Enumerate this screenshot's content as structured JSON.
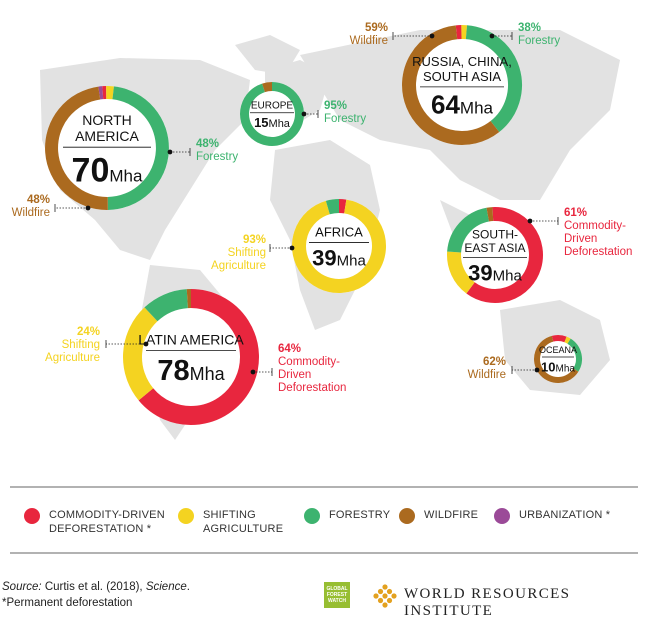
{
  "colors": {
    "commodity": "#e8263e",
    "shifting": "#f4d321",
    "forestry": "#3db36f",
    "wildfire": "#ab6a1f",
    "urbanization": "#9b4a98",
    "map": "#e2e2e2"
  },
  "chart_data": {
    "type": "donut",
    "categories": [
      "Commodity-driven deforestation",
      "Shifting agriculture",
      "Forestry",
      "Wildfire",
      "Urbanization"
    ],
    "regions": [
      {
        "id": "north-america",
        "name_lines": [
          "NORTH",
          "AMERICA"
        ],
        "total": "70",
        "unit": "Mha",
        "slices": [
          {
            "cat": "urbanization",
            "value": 1
          },
          {
            "cat": "commodity",
            "value": 1
          },
          {
            "cat": "shifting",
            "value": 2
          },
          {
            "cat": "forestry",
            "value": 48
          },
          {
            "cat": "wildfire",
            "value": 48
          }
        ],
        "callouts": [
          {
            "pct": "48%",
            "label_lines": [
              "Forestry"
            ],
            "cat": "forestry"
          },
          {
            "pct": "48%",
            "label_lines": [
              "Wildfire"
            ],
            "cat": "wildfire"
          }
        ]
      },
      {
        "id": "europe",
        "name_lines": [
          "EUROPE"
        ],
        "total": "15",
        "unit": "Mha",
        "slices": [
          {
            "cat": "forestry",
            "value": 95
          },
          {
            "cat": "wildfire",
            "value": 5
          }
        ],
        "callouts": [
          {
            "pct": "95%",
            "label_lines": [
              "Forestry"
            ],
            "cat": "forestry"
          }
        ]
      },
      {
        "id": "russia",
        "name_lines": [
          "RUSSIA, CHINA,",
          "SOUTH ASIA"
        ],
        "total": "64",
        "unit": "Mha",
        "slices": [
          {
            "cat": "commodity",
            "value": 1.5
          },
          {
            "cat": "shifting",
            "value": 1.5
          },
          {
            "cat": "forestry",
            "value": 38
          },
          {
            "cat": "wildfire",
            "value": 59
          }
        ],
        "callouts": [
          {
            "pct": "59%",
            "label_lines": [
              "Wildfire"
            ],
            "cat": "wildfire"
          },
          {
            "pct": "38%",
            "label_lines": [
              "Forestry"
            ],
            "cat": "forestry"
          }
        ]
      },
      {
        "id": "africa",
        "name_lines": [
          "AFRICA"
        ],
        "total": "39",
        "unit": "Mha",
        "slices": [
          {
            "cat": "commodity",
            "value": 2.5
          },
          {
            "cat": "shifting",
            "value": 93
          },
          {
            "cat": "forestry",
            "value": 4.5
          }
        ],
        "callouts": [
          {
            "pct": "93%",
            "label_lines": [
              "Shifting",
              "Agriculture"
            ],
            "cat": "shifting"
          }
        ]
      },
      {
        "id": "southeast-asia",
        "name_lines": [
          "SOUTH-",
          "EAST ASIA"
        ],
        "total": "39",
        "unit": "Mha",
        "slices": [
          {
            "cat": "commodity",
            "value": 61
          },
          {
            "cat": "shifting",
            "value": 16
          },
          {
            "cat": "forestry",
            "value": 21
          },
          {
            "cat": "wildfire",
            "value": 2
          }
        ],
        "callouts": [
          {
            "pct": "61%",
            "label_lines": [
              "Commodity-",
              "Driven",
              "Deforestation"
            ],
            "cat": "commodity"
          }
        ]
      },
      {
        "id": "latin-america",
        "name_lines": [
          "LATIN AMERICA"
        ],
        "total": "78",
        "unit": "Mha",
        "slices": [
          {
            "cat": "commodity",
            "value": 64
          },
          {
            "cat": "shifting",
            "value": 24
          },
          {
            "cat": "forestry",
            "value": 11
          },
          {
            "cat": "wildfire",
            "value": 1
          }
        ],
        "callouts": [
          {
            "pct": "24%",
            "label_lines": [
              "Shifting",
              "Agriculture"
            ],
            "cat": "shifting"
          },
          {
            "pct": "64%",
            "label_lines": [
              "Commodity-",
              "Driven",
              "Deforestation"
            ],
            "cat": "commodity"
          }
        ]
      },
      {
        "id": "oceania",
        "name_lines": [
          "OCEANA"
        ],
        "total": "10",
        "unit": "Mha",
        "slices": [
          {
            "cat": "commodity",
            "value": 10
          },
          {
            "cat": "shifting",
            "value": 3
          },
          {
            "cat": "forestry",
            "value": 25
          },
          {
            "cat": "wildfire",
            "value": 62
          }
        ],
        "callouts": [
          {
            "pct": "62%",
            "label_lines": [
              "Wildfire"
            ],
            "cat": "wildfire"
          }
        ]
      }
    ]
  },
  "legend": [
    {
      "key": "commodity",
      "lines": [
        "COMMODITY-DRIVEN",
        "DEFORESTATION *"
      ]
    },
    {
      "key": "shifting",
      "lines": [
        "SHIFTING",
        "AGRICULTURE"
      ]
    },
    {
      "key": "forestry",
      "lines": [
        "FORESTRY"
      ]
    },
    {
      "key": "wildfire",
      "lines": [
        "WILDFIRE"
      ]
    },
    {
      "key": "urbanization",
      "lines": [
        "URBANIZATION *"
      ]
    }
  ],
  "footer": {
    "source_label": "Source:",
    "source_text": " Curtis et al. (2018), ",
    "source_journal": "Science",
    "source_end": ".",
    "note": "*Permanent deforestation",
    "gfw_logo_lines": [
      "GLOBAL",
      "FOREST",
      "WATCH"
    ],
    "org": "WORLD RESOURCES INSTITUTE"
  }
}
